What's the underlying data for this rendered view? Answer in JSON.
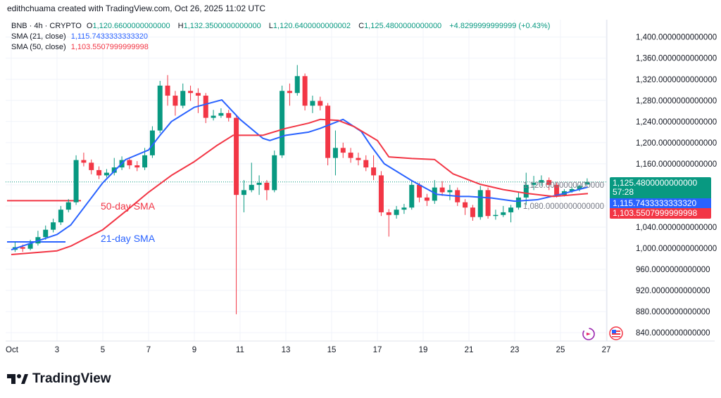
{
  "header": {
    "attribution": "edithchuama created with TradingView.com, Oct 26, 2025 11:02 UTC"
  },
  "legend": {
    "symbol": "BNB · 4h · CRYPTO",
    "open_label": "O",
    "open": "1,120.6600000000000",
    "high_label": "H",
    "high": "1,132.3500000000000",
    "low_label": "L",
    "low": "1,120.6400000000002",
    "close_label": "C",
    "close": "1,125.4800000000000",
    "change": "+4.8299999999999 (+0.43%)",
    "sma21_label": "SMA (21, close)",
    "sma21_value": "1,115.7433333333320",
    "sma50_label": "SMA (50, close)",
    "sma50_value": "1,103.5507999999998"
  },
  "price_tags": {
    "last": "1,125.4800000000000",
    "countdown": "57:28",
    "sma21": "1,115.7433333333320",
    "sma50": "1,103.5507999999998"
  },
  "annotations": {
    "sma50_text": "50-day SMA",
    "sma21_text": "21-day SMA",
    "sma50_line_price": 1090,
    "sma21_line_price": 1012
  },
  "colors": {
    "up": "#089981",
    "down": "#f23645",
    "sma21": "#2962ff",
    "sma50": "#f23645",
    "last_tag": "#089981"
  },
  "icons": [
    "replay-icon",
    "us-flag-icon",
    "tradingview-logo-icon"
  ],
  "brand": {
    "name": "TradingView"
  },
  "chart_data": {
    "type": "candlestick",
    "interval": "8h approx.",
    "ylim": [
      840,
      1400
    ],
    "y_ticks": [
      "1,400.0000000000000",
      "1,360.0000000000000",
      "1,320.0000000000000",
      "1,280.0000000000000",
      "1,240.0000000000000",
      "1,200.0000000000000",
      "1,160.0000000000000",
      "1,120.0000000000000",
      "1,080.0000000000000",
      "1,040.0000000000000",
      "1,000.0000000000000",
      "960.0000000000000",
      "920.0000000000000",
      "880.0000000000000",
      "840.0000000000000"
    ],
    "y_tick_values": [
      1400,
      1360,
      1320,
      1280,
      1240,
      1200,
      1160,
      1120,
      1080,
      1040,
      1000,
      960,
      920,
      880,
      840
    ],
    "x_ticks": [
      {
        "label": "Oct",
        "day": 1
      },
      {
        "label": "3",
        "day": 3
      },
      {
        "label": "5",
        "day": 5
      },
      {
        "label": "7",
        "day": 7
      },
      {
        "label": "9",
        "day": 9
      },
      {
        "label": "11",
        "day": 11
      },
      {
        "label": "13",
        "day": 13
      },
      {
        "label": "15",
        "day": 15
      },
      {
        "label": "17",
        "day": 17
      },
      {
        "label": "19",
        "day": 19
      },
      {
        "label": "21",
        "day": 21
      },
      {
        "label": "23",
        "day": 23
      },
      {
        "label": "25",
        "day": 25
      },
      {
        "label": "27",
        "day": 27
      }
    ],
    "grid": true,
    "last_price": 1125.48,
    "ohlc": [
      [
        997,
        1012,
        993,
        1002
      ],
      [
        1002,
        1007,
        993,
        999
      ],
      [
        999,
        1016,
        996,
        1009
      ],
      [
        1009,
        1033,
        1005,
        1021
      ],
      [
        1021,
        1043,
        1016,
        1035
      ],
      [
        1035,
        1056,
        1030,
        1049
      ],
      [
        1049,
        1080,
        1044,
        1073
      ],
      [
        1073,
        1093,
        1068,
        1087
      ],
      [
        1087,
        1176,
        1082,
        1167
      ],
      [
        1167,
        1181,
        1155,
        1162
      ],
      [
        1162,
        1168,
        1140,
        1148
      ],
      [
        1148,
        1155,
        1131,
        1138
      ],
      [
        1138,
        1150,
        1134,
        1143
      ],
      [
        1143,
        1171,
        1138,
        1153
      ],
      [
        1153,
        1174,
        1148,
        1167
      ],
      [
        1167,
        1171,
        1150,
        1157
      ],
      [
        1157,
        1165,
        1146,
        1153
      ],
      [
        1153,
        1190,
        1148,
        1176
      ],
      [
        1176,
        1231,
        1171,
        1223
      ],
      [
        1223,
        1317,
        1218,
        1308
      ],
      [
        1308,
        1328,
        1270,
        1289
      ],
      [
        1289,
        1298,
        1251,
        1270
      ],
      [
        1270,
        1312,
        1265,
        1298
      ],
      [
        1298,
        1308,
        1279,
        1294
      ],
      [
        1294,
        1303,
        1256,
        1289
      ],
      [
        1289,
        1294,
        1237,
        1247
      ],
      [
        1247,
        1262,
        1242,
        1251
      ],
      [
        1251,
        1265,
        1247,
        1256
      ],
      [
        1256,
        1262,
        1240,
        1247
      ],
      [
        1247,
        1251,
        875,
        1101
      ],
      [
        1101,
        1129,
        1068,
        1110
      ],
      [
        1110,
        1162,
        1106,
        1120
      ],
      [
        1120,
        1138,
        1101,
        1124
      ],
      [
        1124,
        1129,
        1091,
        1110
      ],
      [
        1110,
        1185,
        1106,
        1176
      ],
      [
        1176,
        1308,
        1171,
        1298
      ],
      [
        1298,
        1312,
        1270,
        1294
      ],
      [
        1294,
        1347,
        1289,
        1326
      ],
      [
        1326,
        1331,
        1261,
        1270
      ],
      [
        1270,
        1289,
        1256,
        1279
      ],
      [
        1279,
        1287,
        1261,
        1270
      ],
      [
        1270,
        1275,
        1157,
        1171
      ],
      [
        1171,
        1223,
        1138,
        1190
      ],
      [
        1190,
        1200,
        1171,
        1181
      ],
      [
        1181,
        1190,
        1162,
        1171
      ],
      [
        1171,
        1181,
        1157,
        1167
      ],
      [
        1167,
        1176,
        1146,
        1153
      ],
      [
        1153,
        1176,
        1129,
        1138
      ],
      [
        1138,
        1146,
        1061,
        1068
      ],
      [
        1068,
        1074,
        1022,
        1063
      ],
      [
        1063,
        1080,
        1056,
        1073
      ],
      [
        1073,
        1084,
        1065,
        1077
      ],
      [
        1077,
        1129,
        1073,
        1120
      ],
      [
        1120,
        1124,
        1087,
        1096
      ],
      [
        1096,
        1103,
        1080,
        1090
      ],
      [
        1090,
        1129,
        1084,
        1115
      ],
      [
        1115,
        1127,
        1099,
        1106
      ],
      [
        1106,
        1120,
        1091,
        1110
      ],
      [
        1110,
        1115,
        1080,
        1087
      ],
      [
        1087,
        1093,
        1063,
        1077
      ],
      [
        1077,
        1082,
        1052,
        1059
      ],
      [
        1059,
        1118,
        1054,
        1110
      ],
      [
        1110,
        1115,
        1056,
        1061
      ],
      [
        1061,
        1073,
        1054,
        1063
      ],
      [
        1063,
        1080,
        1059,
        1068
      ],
      [
        1068,
        1082,
        1049,
        1077
      ],
      [
        1077,
        1106,
        1073,
        1096
      ],
      [
        1096,
        1143,
        1082,
        1120
      ],
      [
        1120,
        1137,
        1110,
        1124
      ],
      [
        1124,
        1138,
        1118,
        1129
      ],
      [
        1129,
        1134,
        1110,
        1120
      ],
      [
        1120,
        1124,
        1096,
        1101
      ],
      [
        1101,
        1112,
        1098,
        1108
      ],
      [
        1108,
        1116,
        1105,
        1112
      ],
      [
        1112,
        1120,
        1108,
        1118
      ],
      [
        1120.66,
        1132.35,
        1120.64,
        1125.48
      ]
    ],
    "series": [
      {
        "name": "SMA (21, close)",
        "points": [
          [
            1,
            997
          ],
          [
            3,
            1026
          ],
          [
            3.6,
            1044
          ],
          [
            5,
            1124
          ],
          [
            6,
            1168
          ],
          [
            7,
            1186
          ],
          [
            7.5,
            1214
          ],
          [
            8,
            1240
          ],
          [
            9,
            1267
          ],
          [
            10.2,
            1281
          ],
          [
            11,
            1244
          ],
          [
            12,
            1208
          ],
          [
            12.3,
            1204
          ],
          [
            13,
            1214
          ],
          [
            14,
            1220
          ],
          [
            14.5,
            1227
          ],
          [
            15.5,
            1244
          ],
          [
            16.3,
            1221
          ],
          [
            16.7,
            1195
          ],
          [
            17.3,
            1160
          ],
          [
            18.5,
            1128
          ],
          [
            19.6,
            1102
          ],
          [
            20.6,
            1098
          ],
          [
            21,
            1098
          ],
          [
            22,
            1095
          ],
          [
            23,
            1089
          ],
          [
            24,
            1092
          ],
          [
            25,
            1102
          ],
          [
            26.2,
            1115.74
          ]
        ]
      },
      {
        "name": "SMA (50, close)",
        "points": [
          [
            1,
            988
          ],
          [
            3,
            995
          ],
          [
            3.6,
            1004
          ],
          [
            5,
            1035
          ],
          [
            6,
            1070
          ],
          [
            7,
            1106
          ],
          [
            8,
            1138
          ],
          [
            9,
            1164
          ],
          [
            10,
            1195
          ],
          [
            10.7,
            1214
          ],
          [
            12,
            1214
          ],
          [
            13,
            1227
          ],
          [
            14,
            1237
          ],
          [
            14.5,
            1244
          ],
          [
            15.3,
            1242
          ],
          [
            16,
            1230
          ],
          [
            17,
            1204
          ],
          [
            17.5,
            1173
          ],
          [
            18.5,
            1170
          ],
          [
            19.5,
            1168
          ],
          [
            20.3,
            1141
          ],
          [
            21.5,
            1121
          ],
          [
            22.5,
            1111
          ],
          [
            23.5,
            1104
          ],
          [
            24.7,
            1098
          ],
          [
            26.2,
            1103.55
          ]
        ]
      }
    ]
  }
}
